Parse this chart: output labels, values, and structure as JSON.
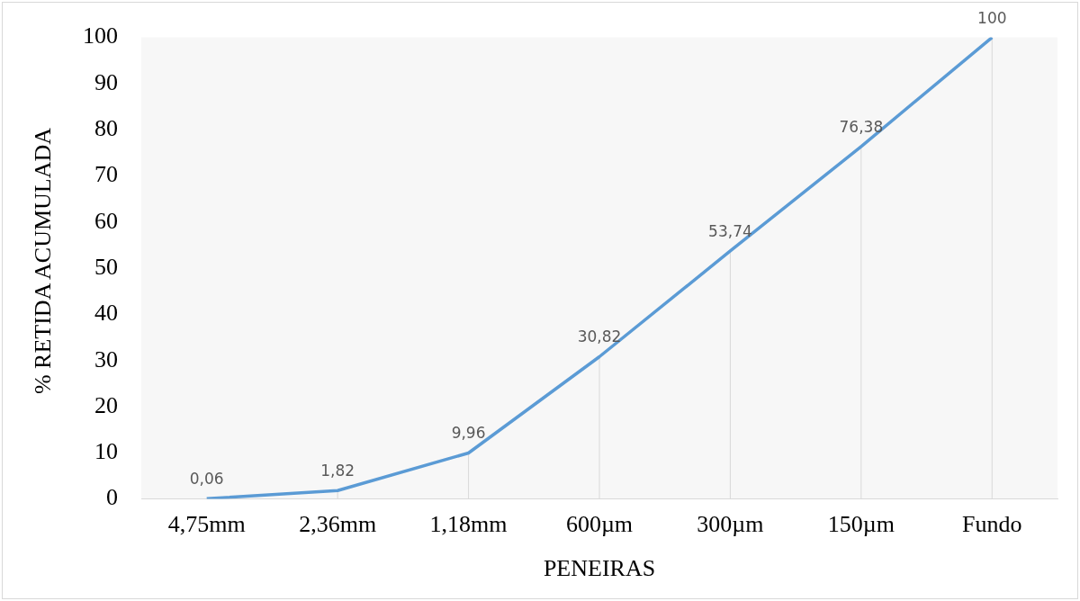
{
  "chart_data": {
    "type": "line",
    "xlabel": "PENEIRAS",
    "ylabel": "% RETIDA ACUMULADA",
    "categories": [
      "4,75mm",
      "2,36mm",
      "1,18mm",
      "600µm",
      "300µm",
      "150µm",
      "Fundo"
    ],
    "series": [
      {
        "color": "#5b9bd5",
        "values": [
          0.06,
          1.82,
          9.96,
          30.82,
          53.74,
          76.38,
          100
        ],
        "value_labels": [
          "0,06",
          "1,82",
          "9,96",
          "30,82",
          "53,74",
          "76,38",
          "100"
        ]
      }
    ],
    "ylim": [
      0,
      100
    ],
    "yticks": [
      0,
      10,
      20,
      30,
      40,
      50,
      60,
      70,
      80,
      90,
      100
    ],
    "grid": "x",
    "legend": false,
    "marker": "none",
    "line_style": "solid"
  }
}
